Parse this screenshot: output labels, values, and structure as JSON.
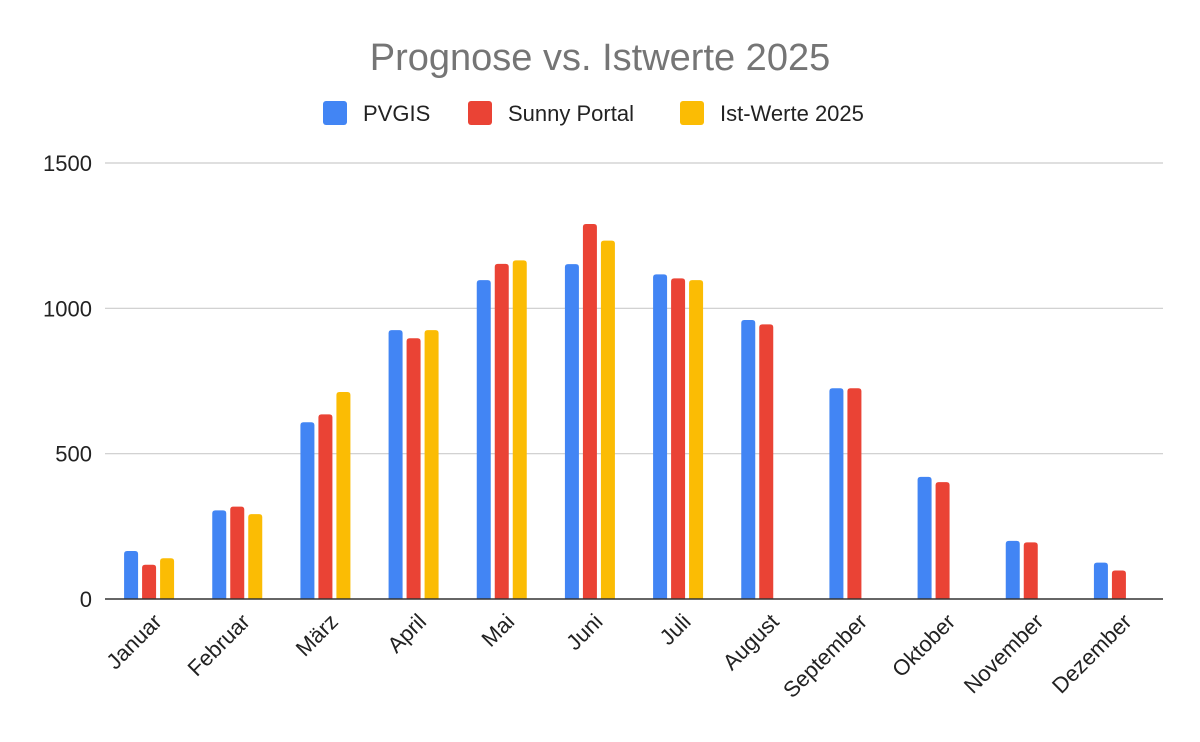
{
  "chart_data": {
    "type": "bar",
    "title": "Prognose vs. Istwerte 2025",
    "xlabel": "",
    "ylabel": "",
    "categories": [
      "Januar",
      "Februar",
      "März",
      "April",
      "Mai",
      "Juni",
      "Juli",
      "August",
      "September",
      "Oktober",
      "November",
      "Dezember"
    ],
    "series": [
      {
        "name": "PVGIS",
        "color": "#4285f4",
        "values": [
          165,
          305,
          608,
          925,
          1097,
          1152,
          1117,
          960,
          725,
          420,
          200,
          125
        ]
      },
      {
        "name": "Sunny Portal",
        "color": "#ea4335",
        "values": [
          118,
          318,
          635,
          897,
          1153,
          1290,
          1103,
          945,
          725,
          402,
          195,
          98
        ]
      },
      {
        "name": "Ist-Werte 2025",
        "color": "#fbbc04",
        "values": [
          140,
          292,
          712,
          925,
          1165,
          1233,
          1097,
          null,
          null,
          null,
          null,
          null
        ]
      }
    ],
    "ylim": [
      0,
      1500
    ],
    "yticks": [
      "0",
      "500",
      "1000",
      "1500"
    ],
    "grid": true,
    "legend_position": "top-center"
  }
}
